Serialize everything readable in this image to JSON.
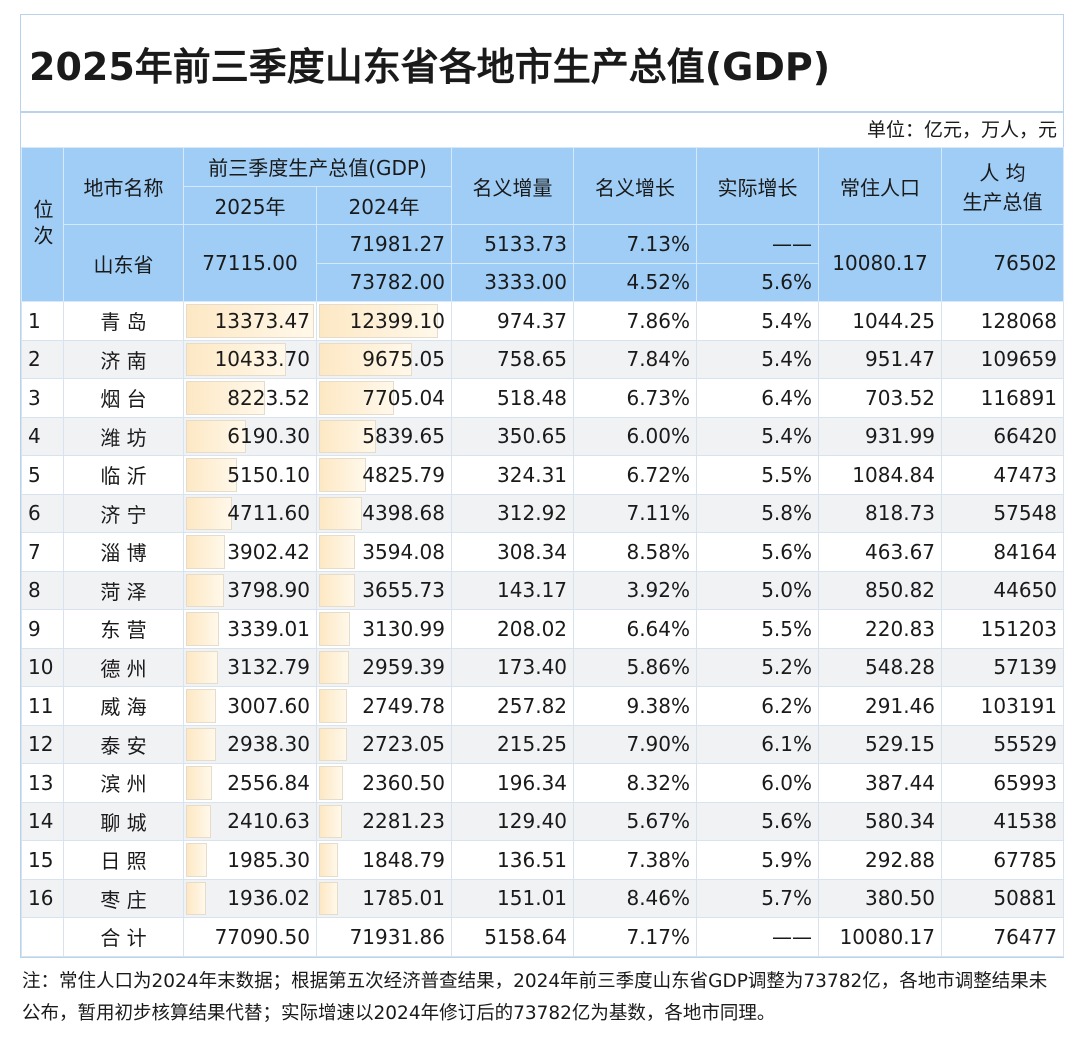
{
  "title": "2025年前三季度山东省各地市生产总值(GDP)",
  "unit": "单位：亿元，万人，元",
  "headers": {
    "rank": "位次",
    "city": "地市名称",
    "gdp_group": "前三季度生产总值(GDP)",
    "y2025": "2025年",
    "y2024": "2024年",
    "nominal_increase": "名义增量",
    "nominal_growth": "名义增长",
    "real_growth": "实际增长",
    "population": "常住人口",
    "per_capita_1": "人 均",
    "per_capita_2": "生产总值"
  },
  "province": {
    "name": "山东省",
    "gdp2025": "77115.00",
    "gdp2024_a": "71981.27",
    "gdp2024_b": "73782.00",
    "increase_a": "5133.73",
    "increase_b": "3333.00",
    "growth_a": "7.13%",
    "growth_b": "4.52%",
    "real_a": "——",
    "real_b": "5.6%",
    "population": "10080.17",
    "per_capita": "76502"
  },
  "rows": [
    {
      "rank": "1",
      "city": "青 岛",
      "gdp2025": "13373.47",
      "gdp2024": "12399.10",
      "inc": "974.37",
      "ng": "7.86%",
      "rg": "5.4%",
      "pop": "1044.25",
      "pc": "128068"
    },
    {
      "rank": "2",
      "city": "济 南",
      "gdp2025": "10433.70",
      "gdp2024": "9675.05",
      "inc": "758.65",
      "ng": "7.84%",
      "rg": "5.4%",
      "pop": "951.47",
      "pc": "109659"
    },
    {
      "rank": "3",
      "city": "烟 台",
      "gdp2025": "8223.52",
      "gdp2024": "7705.04",
      "inc": "518.48",
      "ng": "6.73%",
      "rg": "6.4%",
      "pop": "703.52",
      "pc": "116891"
    },
    {
      "rank": "4",
      "city": "潍 坊",
      "gdp2025": "6190.30",
      "gdp2024": "5839.65",
      "inc": "350.65",
      "ng": "6.00%",
      "rg": "5.4%",
      "pop": "931.99",
      "pc": "66420"
    },
    {
      "rank": "5",
      "city": "临 沂",
      "gdp2025": "5150.10",
      "gdp2024": "4825.79",
      "inc": "324.31",
      "ng": "6.72%",
      "rg": "5.5%",
      "pop": "1084.84",
      "pc": "47473"
    },
    {
      "rank": "6",
      "city": "济 宁",
      "gdp2025": "4711.60",
      "gdp2024": "4398.68",
      "inc": "312.92",
      "ng": "7.11%",
      "rg": "5.8%",
      "pop": "818.73",
      "pc": "57548"
    },
    {
      "rank": "7",
      "city": "淄 博",
      "gdp2025": "3902.42",
      "gdp2024": "3594.08",
      "inc": "308.34",
      "ng": "8.58%",
      "rg": "5.6%",
      "pop": "463.67",
      "pc": "84164"
    },
    {
      "rank": "8",
      "city": "菏 泽",
      "gdp2025": "3798.90",
      "gdp2024": "3655.73",
      "inc": "143.17",
      "ng": "3.92%",
      "rg": "5.0%",
      "pop": "850.82",
      "pc": "44650"
    },
    {
      "rank": "9",
      "city": "东 营",
      "gdp2025": "3339.01",
      "gdp2024": "3130.99",
      "inc": "208.02",
      "ng": "6.64%",
      "rg": "5.5%",
      "pop": "220.83",
      "pc": "151203"
    },
    {
      "rank": "10",
      "city": "德 州",
      "gdp2025": "3132.79",
      "gdp2024": "2959.39",
      "inc": "173.40",
      "ng": "5.86%",
      "rg": "5.2%",
      "pop": "548.28",
      "pc": "57139"
    },
    {
      "rank": "11",
      "city": "威 海",
      "gdp2025": "3007.60",
      "gdp2024": "2749.78",
      "inc": "257.82",
      "ng": "9.38%",
      "rg": "6.2%",
      "pop": "291.46",
      "pc": "103191"
    },
    {
      "rank": "12",
      "city": "泰 安",
      "gdp2025": "2938.30",
      "gdp2024": "2723.05",
      "inc": "215.25",
      "ng": "7.90%",
      "rg": "6.1%",
      "pop": "529.15",
      "pc": "55529"
    },
    {
      "rank": "13",
      "city": "滨 州",
      "gdp2025": "2556.84",
      "gdp2024": "2360.50",
      "inc": "196.34",
      "ng": "8.32%",
      "rg": "6.0%",
      "pop": "387.44",
      "pc": "65993"
    },
    {
      "rank": "14",
      "city": "聊 城",
      "gdp2025": "2410.63",
      "gdp2024": "2281.23",
      "inc": "129.40",
      "ng": "5.67%",
      "rg": "5.6%",
      "pop": "580.34",
      "pc": "41538"
    },
    {
      "rank": "15",
      "city": "日 照",
      "gdp2025": "1985.30",
      "gdp2024": "1848.79",
      "inc": "136.51",
      "ng": "7.38%",
      "rg": "5.9%",
      "pop": "292.88",
      "pc": "67785"
    },
    {
      "rank": "16",
      "city": "枣 庄",
      "gdp2025": "1936.02",
      "gdp2024": "1785.01",
      "inc": "151.01",
      "ng": "8.46%",
      "rg": "5.7%",
      "pop": "380.50",
      "pc": "50881"
    }
  ],
  "total": {
    "label": "合 计",
    "gdp2025": "77090.50",
    "gdp2024": "71931.86",
    "inc": "5158.64",
    "ng": "7.17%",
    "rg": "——",
    "pop": "10080.17",
    "pc": "76477"
  },
  "note": "注：常住人口为2024年末数据；根据第五次经济普查结果，2024年前三季度山东省GDP调整为73782亿，各地市调整结果未公布，暂用初步核算结果代替；实际增速以2024年修订后的73782亿为基数，各地市同理。",
  "colors": {
    "header_bg": "#9fcdf5",
    "bar": "#fde8c4",
    "alt_row": "#f1f2f4"
  }
}
